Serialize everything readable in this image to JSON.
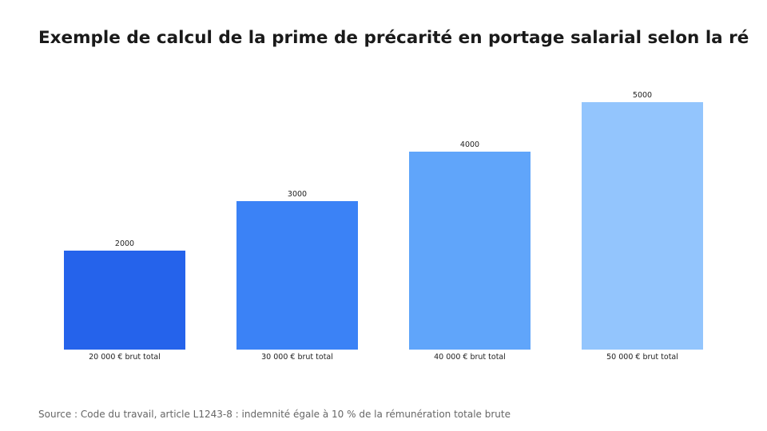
{
  "chart_data": {
    "type": "bar",
    "title": "Exemple de calcul de la prime de précarité en portage salarial selon la ré",
    "xlabel": "",
    "ylabel": "",
    "categories": [
      "20 000 € brut total",
      "30 000 € brut total",
      "40 000 € brut total",
      "50 000 € brut total"
    ],
    "values": [
      2000,
      3000,
      4000,
      5000
    ],
    "colors": [
      "#2563eb",
      "#3b82f6",
      "#60a5fa",
      "#93c5fd"
    ],
    "ylim": [
      0,
      5000
    ],
    "grid": false,
    "legend": "none"
  },
  "source": "Source : Code du travail, article L1243-8 : indemnité égale à 10 % de la rémunération totale brute"
}
